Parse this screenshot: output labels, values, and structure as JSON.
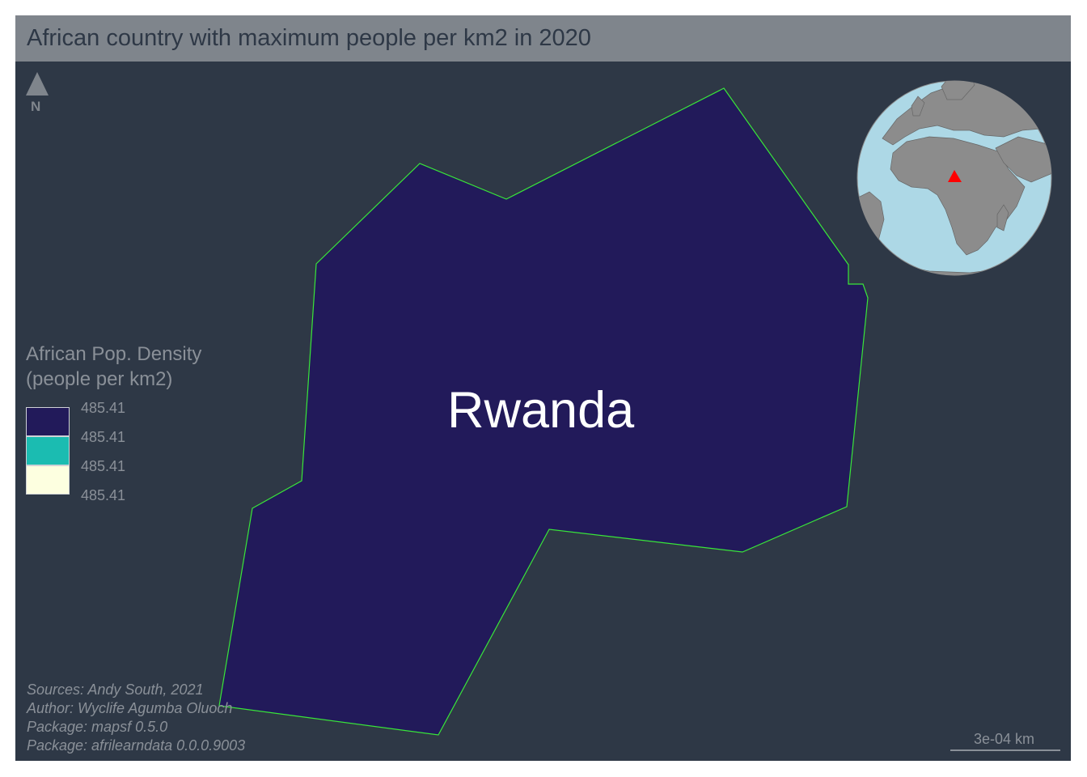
{
  "title": "African country with maximum people per km2 in 2020",
  "north_arrow": {
    "icon": "north-arrow-icon",
    "label": "N"
  },
  "country": {
    "name": "Rwanda",
    "fill_color": "#221a5a",
    "border_color": "#39e639"
  },
  "legend": {
    "title_line1": "African Pop. Density",
    "title_line2": "(people per km2)",
    "classes": [
      {
        "label": "485.41",
        "color": "#221a5a"
      },
      {
        "label": "485.41",
        "color": "#1bbcb1"
      },
      {
        "label": "485.41",
        "color": "#fdffe0"
      },
      {
        "label": "485.41"
      }
    ]
  },
  "credits": {
    "line1": "Sources: Andy South, 2021",
    "line2": "Author: Wyclife Agumba Oluoch",
    "line3": "Package: mapsf 0.5.0",
    "line4": "Package: afrilearndata 0.0.0.9003"
  },
  "scale_bar": {
    "label": "3e-04 km"
  },
  "inset_globe": {
    "ocean_color": "#add8e6",
    "land_color": "#8c8c8c",
    "marker_color": "#ff0000",
    "marker_icon": "location-triangle-icon"
  },
  "colors": {
    "background": "#2e3846",
    "title_bar": "#7f858c"
  }
}
